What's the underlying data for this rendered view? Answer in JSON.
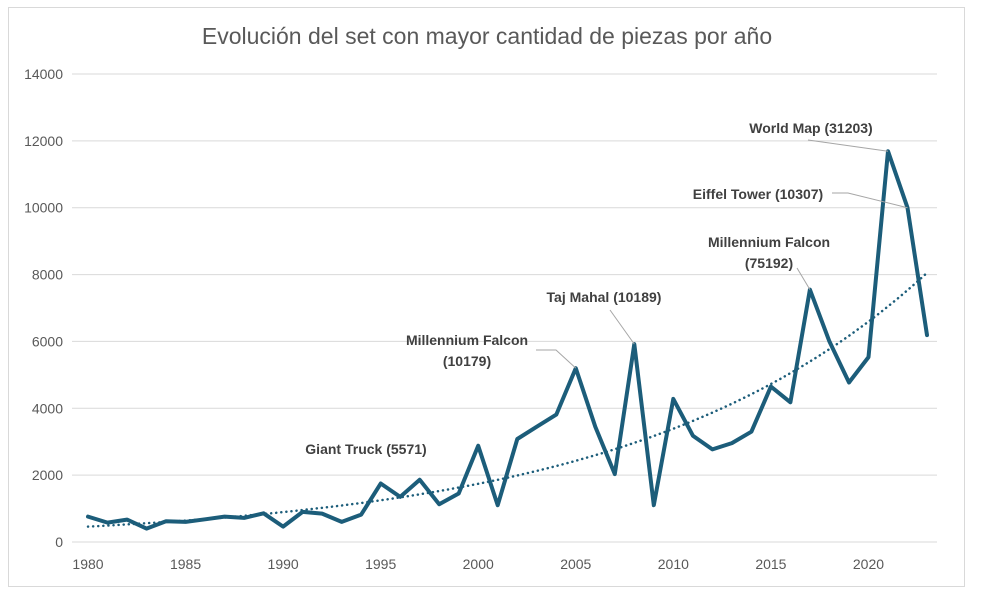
{
  "chart_data": {
    "type": "line",
    "title": "Evolución del set con mayor cantidad de piezas por año",
    "xlabel": "",
    "ylabel": "",
    "xlim": [
      1980,
      2023
    ],
    "ylim": [
      0,
      14000
    ],
    "x_ticks": [
      "1980",
      "1985",
      "1990",
      "1995",
      "2000",
      "2005",
      "2010",
      "2015",
      "2020"
    ],
    "y_ticks": [
      "0",
      "2000",
      "4000",
      "6000",
      "8000",
      "10000",
      "12000",
      "14000"
    ],
    "grid": "horizontal",
    "legend": "none",
    "series": [
      {
        "color": "#1c5d7a",
        "style": "solid",
        "x": [
          1980,
          1981,
          1982,
          1983,
          1984,
          1985,
          1986,
          1987,
          1988,
          1989,
          1990,
          1991,
          1992,
          1993,
          1994,
          1995,
          1996,
          1997,
          1998,
          1999,
          2000,
          2001,
          2002,
          2003,
          2004,
          2005,
          2006,
          2007,
          2008,
          2009,
          2010,
          2011,
          2012,
          2013,
          2014,
          2015,
          2016,
          2017,
          2018,
          2019,
          2020,
          2021,
          2022,
          2023
        ],
        "values": [
          760,
          580,
          670,
          400,
          620,
          600,
          680,
          760,
          720,
          860,
          460,
          900,
          850,
          600,
          820,
          1750,
          1350,
          1860,
          1130,
          1450,
          2880,
          1100,
          3080,
          3450,
          3810,
          5200,
          3450,
          2030,
          5920,
          1100,
          4280,
          3180,
          2770,
          2960,
          3300,
          4650,
          4180,
          7550,
          6000,
          4770,
          5530,
          11690,
          10000,
          6190
        ]
      },
      {
        "color": "#1c5d7a",
        "style": "dotted",
        "trend": "exponential",
        "x": [
          1980,
          2023
        ],
        "values": [
          460,
          8050
        ]
      }
    ],
    "annotations": [
      {
        "label": "Giant Truck (5571)",
        "x": 1995,
        "y": 1750
      },
      {
        "label": "Millennium Falcon (10179)",
        "x": 2005,
        "y": 5200
      },
      {
        "label": "Taj Mahal (10189)",
        "x": 2008,
        "y": 5920
      },
      {
        "label": "Millennium Falcon (75192)",
        "x": 2017,
        "y": 7550
      },
      {
        "label": "Eiffel Tower (10307)",
        "x": 2022,
        "y": 10000
      },
      {
        "label": "World Map (31203)",
        "x": 2021,
        "y": 11690
      }
    ]
  }
}
